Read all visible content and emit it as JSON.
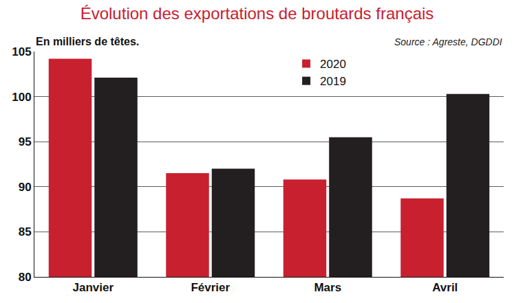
{
  "chart_data": {
    "type": "bar",
    "title": "Évolution des exportations de broutards français",
    "subtitle": "En milliers de têtes.",
    "source": "Source : Agreste, DGDDI",
    "categories": [
      "Janvier",
      "Février",
      "Mars",
      "Avril"
    ],
    "series": [
      {
        "name": "2020",
        "color": "#c8202f",
        "values": [
          104.2,
          91.5,
          90.8,
          88.7
        ]
      },
      {
        "name": "2019",
        "color": "#231f20",
        "values": [
          102.1,
          92.0,
          95.5,
          100.3
        ]
      }
    ],
    "ylim": [
      80,
      105
    ],
    "yticks": [
      80,
      85,
      90,
      95,
      100,
      105
    ],
    "grid": true,
    "legend": "top right"
  }
}
